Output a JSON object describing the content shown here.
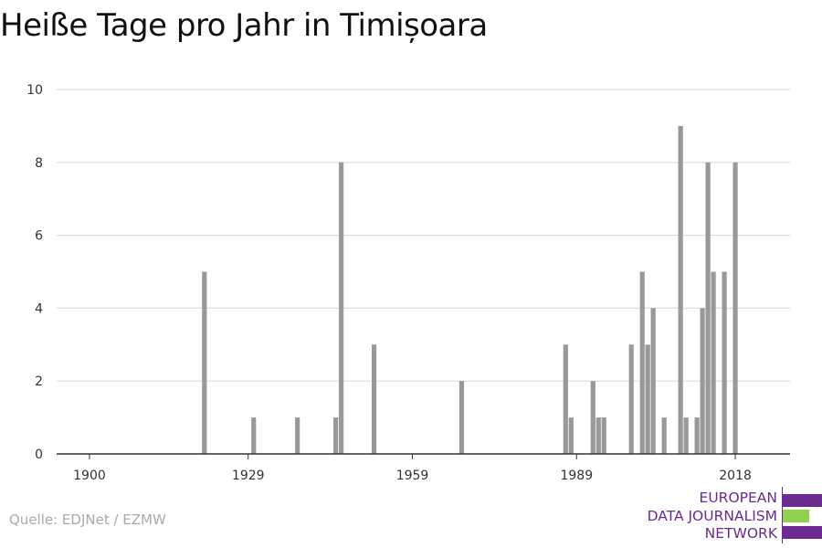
{
  "title": "Heiße Tage pro Jahr in Timișoara",
  "source": "Quelle: EDJNet / EZMW",
  "logo": {
    "lines": [
      "EUROPEAN",
      "DATA JOURNALISM",
      "NETWORK"
    ],
    "colors": {
      "purple": "#6b2a8f",
      "green": "#8fd14f"
    }
  },
  "chart_data": {
    "type": "bar",
    "xlabel": "",
    "ylabel": "",
    "xlim": [
      1894,
      2028
    ],
    "ylim": [
      0,
      10
    ],
    "x_ticks": [
      1900,
      1929,
      1959,
      1989,
      2018
    ],
    "y_ticks": [
      0,
      2,
      4,
      6,
      8,
      10
    ],
    "grid": true,
    "bar_color": "#999999",
    "series": [
      {
        "x": [
          1921,
          1930,
          1938,
          1945,
          1946,
          1952,
          1968,
          1987,
          1988,
          1992,
          1993,
          1994,
          1999,
          2001,
          2002,
          2003,
          2005,
          2008,
          2009,
          2011,
          2012,
          2013,
          2014,
          2016,
          2018
        ],
        "values": [
          5,
          1,
          1,
          1,
          8,
          3,
          2,
          3,
          1,
          2,
          1,
          1,
          3,
          5,
          3,
          4,
          1,
          9,
          1,
          1,
          4,
          8,
          5,
          5,
          8
        ]
      }
    ]
  }
}
